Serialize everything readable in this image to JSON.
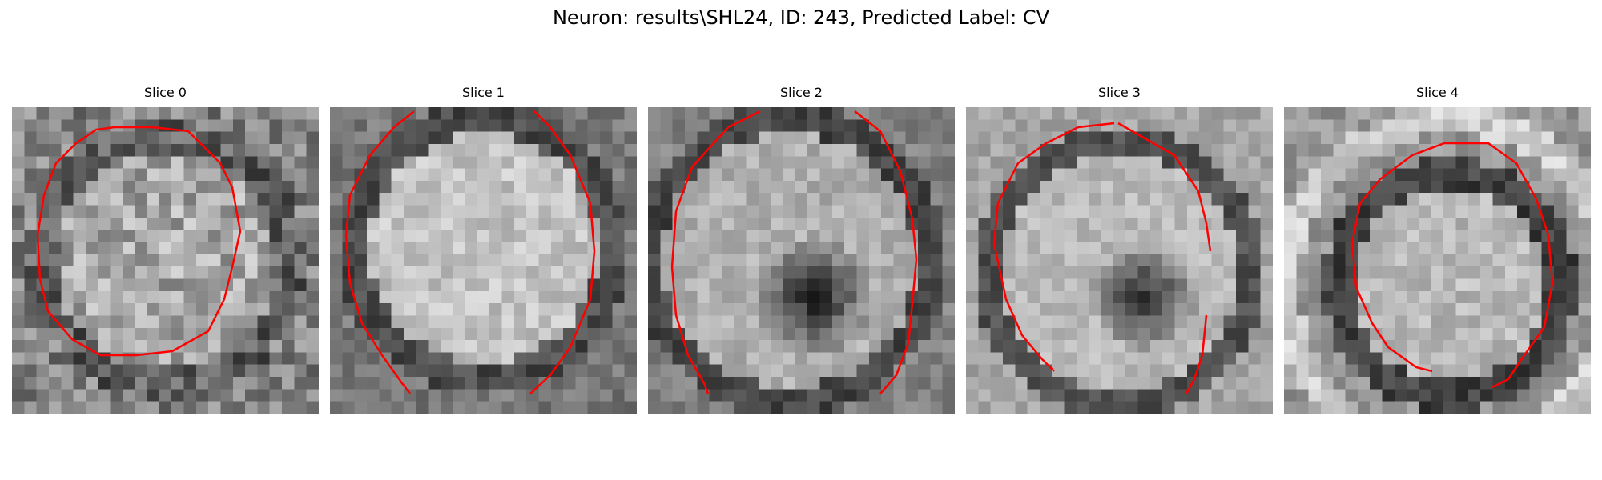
{
  "figure": {
    "title": "Neuron: results\\SHL24, ID: 243, Predicted Label: CV",
    "contour_color": "#ff0000"
  },
  "panels": [
    {
      "title": "Slice 0"
    },
    {
      "title": "Slice 1"
    },
    {
      "title": "Slice 2"
    },
    {
      "title": "Slice 3"
    },
    {
      "title": "Slice 4"
    }
  ]
}
